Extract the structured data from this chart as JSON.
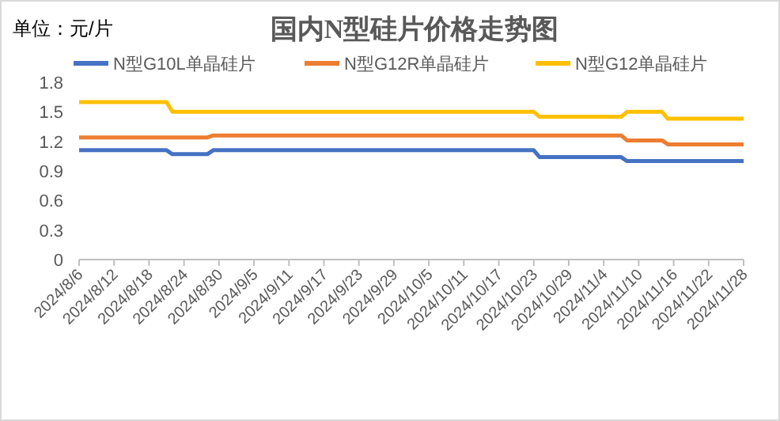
{
  "chart_data": {
    "type": "line",
    "title": "国内N型硅片价格走势图",
    "annotations": [
      "单位：元/片"
    ],
    "xlim": [
      "2024-08-06",
      "2024-11-28"
    ],
    "xticks": [
      {
        "value": "2024-08-06",
        "label": "2024/8/6"
      },
      {
        "value": "2024-08-12",
        "label": "2024/8/12"
      },
      {
        "value": "2024-08-18",
        "label": "2024/8/18"
      },
      {
        "value": "2024-08-24",
        "label": "2024/8/24"
      },
      {
        "value": "2024-08-30",
        "label": "2024/8/30"
      },
      {
        "value": "2024-09-05",
        "label": "2024/9/5"
      },
      {
        "value": "2024-09-11",
        "label": "2024/9/11"
      },
      {
        "value": "2024-09-17",
        "label": "2024/9/17"
      },
      {
        "value": "2024-09-23",
        "label": "2024/9/23"
      },
      {
        "value": "2024-09-29",
        "label": "2024/9/29"
      },
      {
        "value": "2024-10-05",
        "label": "2024/10/5"
      },
      {
        "value": "2024-10-11",
        "label": "2024/10/11"
      },
      {
        "value": "2024-10-17",
        "label": "2024/10/17"
      },
      {
        "value": "2024-10-23",
        "label": "2024/10/23"
      },
      {
        "value": "2024-10-29",
        "label": "2024/10/29"
      },
      {
        "value": "2024-11-04",
        "label": "2024/11/4"
      },
      {
        "value": "2024-11-10",
        "label": "2024/11/10"
      },
      {
        "value": "2024-11-16",
        "label": "2024/11/16"
      },
      {
        "value": "2024-11-22",
        "label": "2024/11/22"
      },
      {
        "value": "2024-11-28",
        "label": "2024/11/28"
      }
    ],
    "ylim": [
      0,
      1.8
    ],
    "yticks": [
      0,
      0.3,
      0.6,
      0.9,
      {
        "value": 1.2,
        "label": "1.2"
      },
      1.5,
      1.8
    ],
    "legend": "top",
    "series": [
      {
        "name": "N型G10L单晶硅片",
        "color": "#4472c4",
        "x": [
          "2024-08-06",
          "2024-08-21",
          "2024-08-22",
          "2024-08-28",
          "2024-08-29",
          "2024-10-23",
          "2024-10-24",
          "2024-11-07",
          "2024-11-08",
          "2024-11-28"
        ],
        "values": [
          1.11,
          1.11,
          1.07,
          1.07,
          1.11,
          1.11,
          1.04,
          1.04,
          1.0,
          1.0
        ]
      },
      {
        "name": "N型G12R单晶硅片",
        "color": "#ed7d31",
        "x": [
          "2024-08-06",
          "2024-08-28",
          "2024-08-29",
          "2024-11-07",
          "2024-11-08",
          "2024-11-14",
          "2024-11-15",
          "2024-11-28"
        ],
        "values": [
          1.24,
          1.24,
          1.26,
          1.26,
          1.21,
          1.21,
          1.17,
          1.17
        ]
      },
      {
        "name": "N型G12单晶硅片",
        "color": "#ffc000",
        "x": [
          "2024-08-06",
          "2024-08-21",
          "2024-08-22",
          "2024-10-23",
          "2024-10-24",
          "2024-11-07",
          "2024-11-08",
          "2024-11-14",
          "2024-11-15",
          "2024-11-28"
        ],
        "values": [
          1.6,
          1.6,
          1.5,
          1.5,
          1.45,
          1.45,
          1.5,
          1.5,
          1.43,
          1.43
        ]
      }
    ]
  }
}
